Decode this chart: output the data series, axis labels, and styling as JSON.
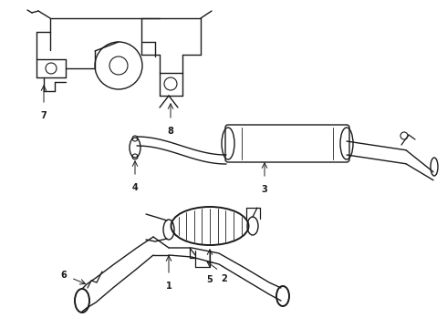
{
  "bg_color": "#ffffff",
  "line_color": "#1a1a1a",
  "label_color": "#111111",
  "lw": 1.0,
  "label_fs": 7,
  "figsize": [
    4.9,
    3.6
  ],
  "dpi": 100,
  "xlim": [
    0,
    490
  ],
  "ylim": [
    0,
    360
  ]
}
